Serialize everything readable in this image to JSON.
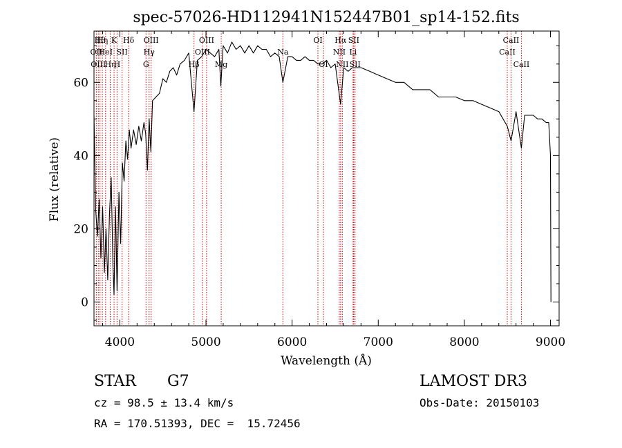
{
  "chart_data": {
    "type": "line",
    "title": "spec-57026-HD112941N152447B01_sp14-152.fits",
    "xlabel": "Wavelength (Å)",
    "ylabel": "Flux (relative)",
    "xlim": [
      3700,
      9100
    ],
    "ylim": [
      -6.5,
      74
    ],
    "x_ticks": [
      4000,
      5000,
      6000,
      7000,
      8000,
      9000
    ],
    "y_ticks": [
      0,
      20,
      40,
      60
    ],
    "grid": false,
    "series": [
      {
        "x": [
          3700,
          3720,
          3740,
          3760,
          3780,
          3800,
          3820,
          3840,
          3860,
          3880,
          3900,
          3920,
          3933,
          3950,
          3968,
          3990,
          4010,
          4030,
          4050,
          4070,
          4090,
          4110,
          4130,
          4160,
          4190,
          4220,
          4250,
          4280,
          4300,
          4320,
          4340,
          4360,
          4380,
          4420,
          4460,
          4500,
          4540,
          4580,
          4620,
          4660,
          4700,
          4750,
          4800,
          4861,
          4900,
          4950,
          5000,
          5050,
          5100,
          5150,
          5172,
          5200,
          5250,
          5300,
          5350,
          5400,
          5450,
          5500,
          5550,
          5600,
          5650,
          5700,
          5750,
          5800,
          5850,
          5893,
          5950,
          6000,
          6050,
          6100,
          6150,
          6200,
          6250,
          6300,
          6350,
          6400,
          6450,
          6500,
          6563,
          6600,
          6650,
          6700,
          6750,
          6800,
          6900,
          7000,
          7100,
          7200,
          7300,
          7400,
          7500,
          7600,
          7700,
          7800,
          7900,
          8000,
          8100,
          8200,
          8300,
          8400,
          8498,
          8542,
          8600,
          8662,
          8700,
          8800,
          8850,
          8900,
          8950,
          8980,
          9000,
          9005
        ],
        "y": [
          51,
          25,
          18,
          28,
          12,
          26,
          8,
          20,
          6,
          24,
          34,
          10,
          2,
          26,
          3,
          30,
          16,
          38,
          33,
          44,
          39,
          47,
          42,
          47,
          43,
          48,
          44,
          49,
          46,
          36,
          50,
          41,
          55,
          56,
          57,
          61,
          60,
          63,
          64,
          62,
          65,
          66,
          68,
          52,
          66,
          67,
          69,
          68,
          67,
          69,
          59,
          70,
          68,
          71,
          69,
          70,
          68,
          70,
          68,
          70,
          69,
          69,
          67,
          68,
          67,
          60,
          67,
          67,
          66,
          66,
          67,
          66,
          66,
          65,
          65,
          66,
          64,
          65,
          54,
          64,
          63,
          64,
          64,
          64,
          63,
          62,
          61,
          60,
          60,
          58,
          58,
          58,
          56,
          56,
          56,
          55,
          55,
          54,
          53,
          52,
          48,
          44,
          52,
          42,
          51,
          51,
          50,
          50,
          49,
          49,
          40,
          0
        ]
      }
    ],
    "line_color": "#000000",
    "marker_color": "#cc0000",
    "line_markers": [
      {
        "x": 3727,
        "label": "OII",
        "row": 1
      },
      {
        "x": 3750,
        "label": "OIII",
        "row": 2
      },
      {
        "x": 3770,
        "label": "Hθ",
        "row": 0
      },
      {
        "x": 3797,
        "label": "Hη",
        "row": 0
      },
      {
        "x": 3835,
        "label": "HeI",
        "row": 1
      },
      {
        "x": 3889,
        "label": "Hη",
        "row": 2
      },
      {
        "x": 3933,
        "label": "K",
        "row": 0
      },
      {
        "x": 3968,
        "label": "H",
        "row": 2
      },
      {
        "x": 4026,
        "label": "SII",
        "row": 1
      },
      {
        "x": 4102,
        "label": "Hδ",
        "row": 0
      },
      {
        "x": 4304,
        "label": "G",
        "row": 2
      },
      {
        "x": 4340,
        "label": "Hγ",
        "row": 1
      },
      {
        "x": 4363,
        "label": "OIII",
        "row": 0
      },
      {
        "x": 4861,
        "label": "Hβ",
        "row": 2
      },
      {
        "x": 4959,
        "label": "OIII",
        "row": 1
      },
      {
        "x": 5007,
        "label": "OIII",
        "row": 0
      },
      {
        "x": 5177,
        "label": "Mg",
        "row": 2
      },
      {
        "x": 5893,
        "label": "Na",
        "row": 1
      },
      {
        "x": 6300,
        "label": "OI",
        "row": 0
      },
      {
        "x": 6363,
        "label": "OI",
        "row": 2
      },
      {
        "x": 6548,
        "label": "NII",
        "row": 1
      },
      {
        "x": 6563,
        "label": "Hα",
        "row": 0
      },
      {
        "x": 6583,
        "label": "NII",
        "row": 2
      },
      {
        "x": 6708,
        "label": "Li",
        "row": 1
      },
      {
        "x": 6716,
        "label": "SII",
        "row": 0
      },
      {
        "x": 6731,
        "label": "SII",
        "row": 2
      },
      {
        "x": 8498,
        "label": "CaII",
        "row": 1
      },
      {
        "x": 8542,
        "label": "CaII",
        "row": 0
      },
      {
        "x": 8662,
        "label": "CaII",
        "row": 2
      }
    ]
  },
  "info": {
    "class": "STAR",
    "subclass": "G7",
    "survey": "LAMOST DR3",
    "cz": "cz = 98.5 ± 13.4 km/s",
    "obs_date": "Obs-Date: 20150103",
    "coords": "RA = 170.51393, DEC =  15.72456"
  }
}
